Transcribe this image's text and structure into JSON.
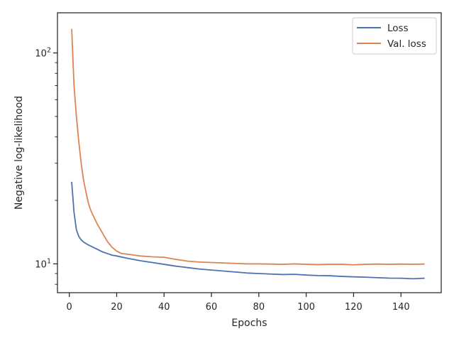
{
  "chart_data": {
    "type": "line",
    "title": "",
    "xlabel": "Epochs",
    "ylabel": "Negative log-likelihood",
    "xlim": [
      -5,
      157
    ],
    "ylim": [
      7.3,
      155
    ],
    "yscale": "log",
    "grid": false,
    "legend_placement": "top-right",
    "x_ticks": [
      0,
      20,
      40,
      60,
      80,
      100,
      120,
      140
    ],
    "x_tick_labels": [
      "0",
      "20",
      "40",
      "60",
      "80",
      "100",
      "120",
      "140"
    ],
    "y_major_ticks": [
      10,
      100
    ],
    "y_major_tick_labels": [
      "10",
      "10",
      "2"
    ],
    "y_tick_label_text": {
      "base10": "10",
      "exp1": "1",
      "exp2": "2"
    },
    "y_minor_ticks": [
      8,
      9,
      20,
      30,
      40,
      50,
      60,
      70,
      80,
      90
    ],
    "series": [
      {
        "name": "Loss",
        "color": "#4c72b0",
        "x": [
          1,
          2,
          3,
          4,
          5,
          6,
          8,
          10,
          12,
          14,
          16,
          18,
          20,
          25,
          30,
          35,
          40,
          45,
          50,
          55,
          60,
          65,
          70,
          75,
          80,
          85,
          90,
          95,
          100,
          105,
          110,
          115,
          120,
          125,
          130,
          135,
          140,
          145,
          150
        ],
        "y": [
          24.5,
          17.5,
          14.5,
          13.5,
          13.0,
          12.7,
          12.3,
          12.0,
          11.7,
          11.4,
          11.2,
          11.0,
          10.9,
          10.6,
          10.35,
          10.15,
          9.95,
          9.75,
          9.6,
          9.45,
          9.35,
          9.25,
          9.15,
          9.05,
          9.0,
          8.95,
          8.9,
          8.92,
          8.85,
          8.8,
          8.78,
          8.72,
          8.68,
          8.65,
          8.6,
          8.56,
          8.55,
          8.5,
          8.55
        ]
      },
      {
        "name": "Val. loss",
        "color": "#dd8452",
        "x": [
          1,
          2,
          3,
          4,
          5,
          6,
          7,
          8,
          9,
          10,
          12,
          14,
          16,
          18,
          20,
          22,
          25,
          30,
          35,
          40,
          45,
          50,
          55,
          60,
          65,
          70,
          75,
          80,
          85,
          90,
          95,
          100,
          105,
          110,
          115,
          120,
          125,
          130,
          135,
          140,
          145,
          150
        ],
        "y": [
          130,
          70,
          50,
          38,
          30,
          25,
          22,
          19.5,
          18,
          17,
          15.3,
          14.0,
          12.8,
          12.0,
          11.5,
          11.2,
          11.1,
          10.9,
          10.8,
          10.75,
          10.5,
          10.3,
          10.2,
          10.15,
          10.1,
          10.05,
          10.0,
          10.0,
          9.98,
          9.95,
          10.0,
          9.95,
          9.92,
          9.95,
          9.95,
          9.9,
          9.95,
          9.98,
          9.95,
          9.98,
          9.96,
          9.98
        ]
      }
    ]
  }
}
